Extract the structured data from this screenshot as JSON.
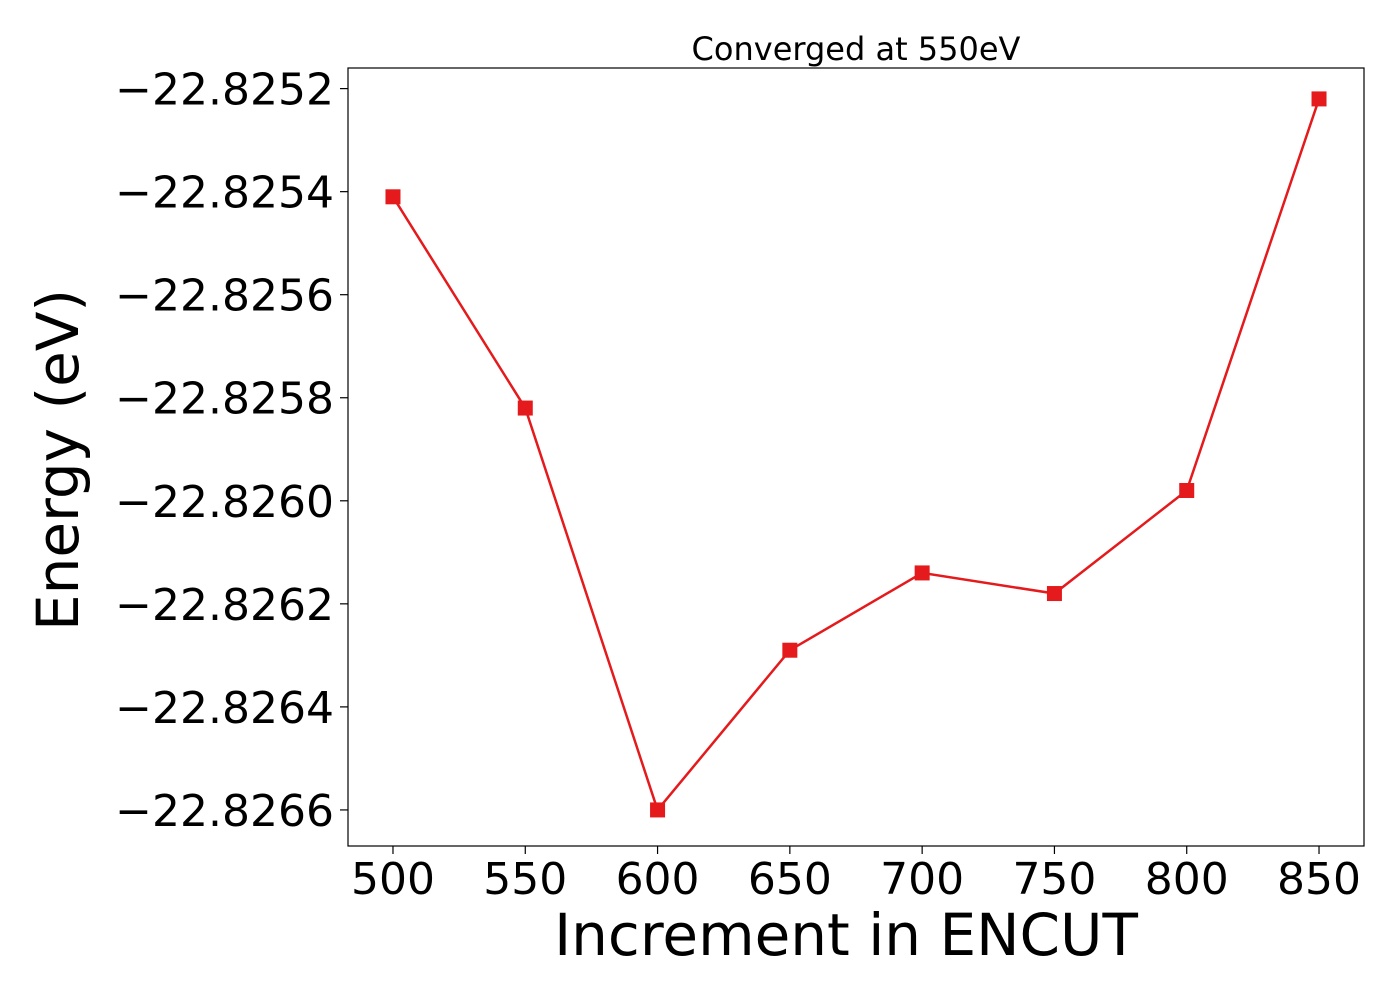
{
  "chart_data": {
    "type": "line",
    "title": "Converged at 550eV",
    "xlabel": "Increment in ENCUT",
    "ylabel": "Energy (eV)",
    "x": [
      500,
      550,
      600,
      650,
      700,
      750,
      800,
      850
    ],
    "y": [
      -22.82541,
      -22.82582,
      -22.8266,
      -22.82629,
      -22.82614,
      -22.82618,
      -22.82598,
      -22.82522
    ],
    "xticks": [
      500,
      550,
      600,
      650,
      700,
      750,
      800,
      850
    ],
    "xtick_labels": [
      "500",
      "550",
      "600",
      "650",
      "700",
      "750",
      "800",
      "850"
    ],
    "yticks": [
      -22.8252,
      -22.8254,
      -22.8256,
      -22.8258,
      -22.826,
      -22.8262,
      -22.8264,
      -22.8266
    ],
    "ytick_labels": [
      "−22.8252",
      "−22.8254",
      "−22.8256",
      "−22.8258",
      "−22.8260",
      "−22.8262",
      "−22.8264",
      "−22.8266"
    ],
    "xlim": [
      483,
      867
    ],
    "ylim": [
      -22.82667,
      -22.82516
    ],
    "grid": false,
    "marker": "square",
    "color": "#e41a1c"
  }
}
